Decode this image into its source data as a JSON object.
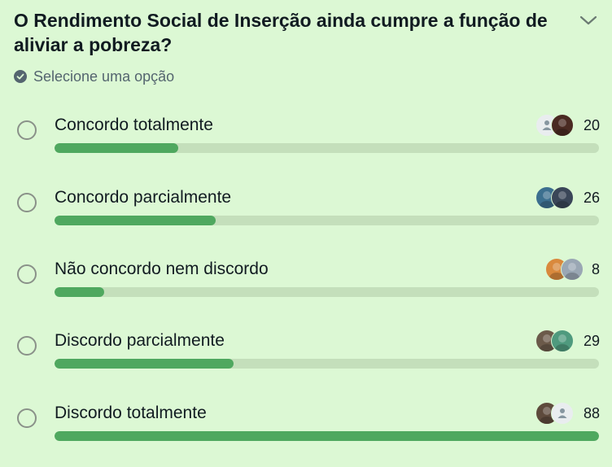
{
  "poll": {
    "question": "O Rendimento Social de Inserção ainda cumpre a função de aliviar a pobreza?",
    "hint": "Selecione uma opção",
    "max_votes": 88,
    "options": [
      {
        "label": "Concordo totalmente",
        "votes": 20,
        "count_text": "20",
        "avatars": [
          {
            "kind": "default",
            "bg": "#e9edef"
          },
          {
            "kind": "photo",
            "bg": "#4a2a22"
          }
        ]
      },
      {
        "label": "Concordo parcialmente",
        "votes": 26,
        "count_text": "26",
        "avatars": [
          {
            "kind": "photo",
            "bg": "#3c6f8f"
          },
          {
            "kind": "photo",
            "bg": "#3a4658"
          }
        ]
      },
      {
        "label": "Não concordo nem discordo",
        "votes": 8,
        "count_text": "8",
        "avatars": [
          {
            "kind": "photo",
            "bg": "#d9893d"
          },
          {
            "kind": "photo",
            "bg": "#9aa7b4"
          }
        ]
      },
      {
        "label": "Discordo parcialmente",
        "votes": 29,
        "count_text": "29",
        "avatars": [
          {
            "kind": "photo",
            "bg": "#6b5a4a"
          },
          {
            "kind": "photo",
            "bg": "#4f9a7e"
          }
        ]
      },
      {
        "label": "Discordo totalmente",
        "votes": 88,
        "count_text": "88",
        "avatars": [
          {
            "kind": "photo",
            "bg": "#5e4a3c"
          },
          {
            "kind": "default",
            "bg": "#e9edef"
          }
        ]
      }
    ]
  },
  "colors": {
    "background": "#dcf8d4",
    "bar_fill": "#4fa85f",
    "bar_track": "#c4dfbb",
    "radio_border": "#8a9189"
  },
  "icons": {
    "hint": "check-circle-icon",
    "expand": "chevron-down-icon",
    "radio": "radio-icon"
  }
}
